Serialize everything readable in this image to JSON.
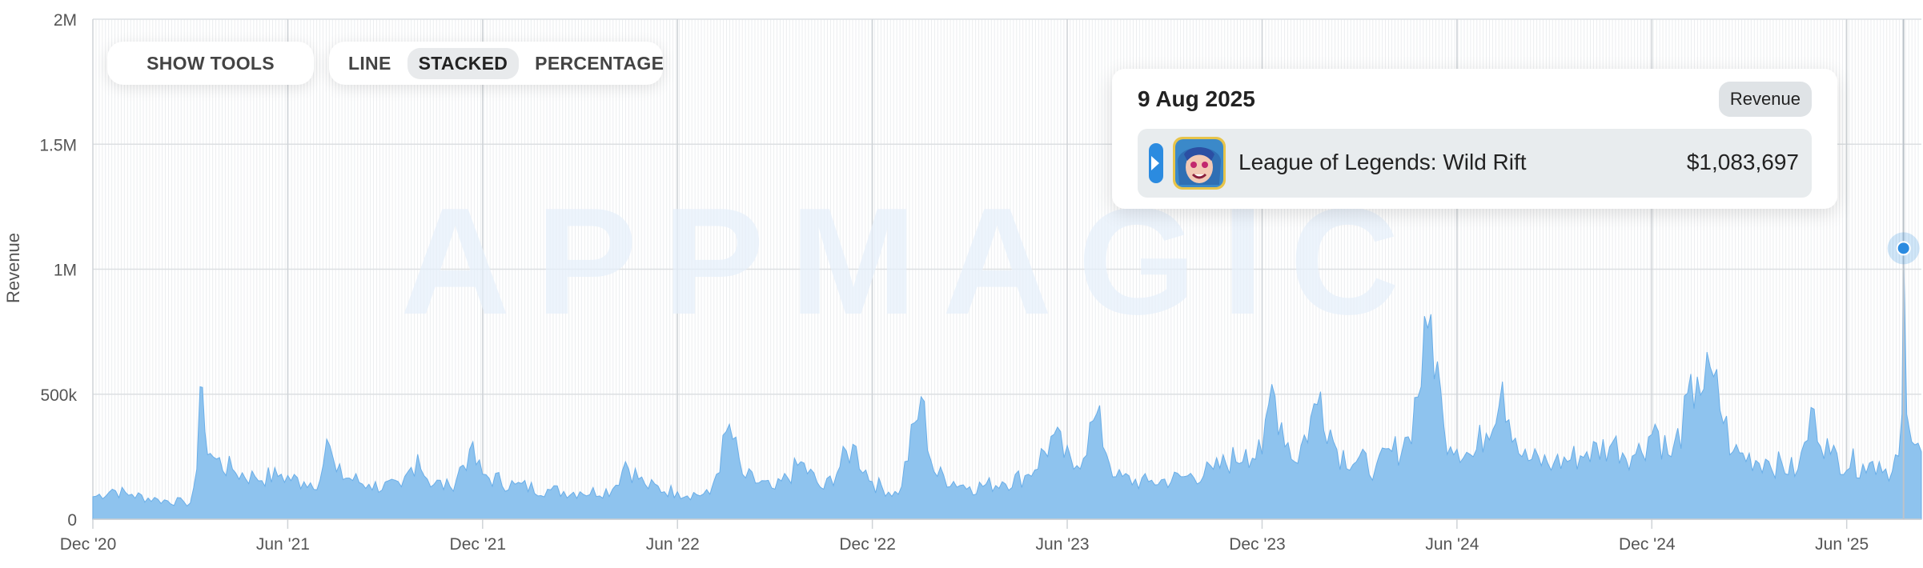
{
  "controls": {
    "show_tools": "SHOW TOOLS",
    "modes": [
      {
        "label": "LINE",
        "active": false
      },
      {
        "label": "STACKED",
        "active": true
      },
      {
        "label": "PERCENTAGE",
        "active": false
      }
    ]
  },
  "watermark": "APPMAGIC",
  "tooltip": {
    "date": "9 Aug 2025",
    "metric": "Revenue",
    "app_name": "League of Legends: Wild Rift",
    "value": "$1,083,697",
    "series_color": "#2b8be0"
  },
  "chart_data": {
    "type": "area",
    "title": "",
    "xlabel": "",
    "ylabel": "Revenue",
    "ylim": [
      0,
      2000000
    ],
    "y_ticks": [
      {
        "value": 0,
        "label": "0"
      },
      {
        "value": 500000,
        "label": "500k"
      },
      {
        "value": 1000000,
        "label": "1M"
      },
      {
        "value": 1500000,
        "label": "1.5M"
      },
      {
        "value": 2000000,
        "label": "2M"
      }
    ],
    "x_range_months": [
      0,
      56.3
    ],
    "x_ticks": [
      {
        "month": 0,
        "label": "Dec '20"
      },
      {
        "month": 6,
        "label": "Jun '21"
      },
      {
        "month": 12,
        "label": "Dec '21"
      },
      {
        "month": 18,
        "label": "Jun '22"
      },
      {
        "month": 24,
        "label": "Dec '22"
      },
      {
        "month": 30,
        "label": "Jun '23"
      },
      {
        "month": 36,
        "label": "Dec '23"
      },
      {
        "month": 42,
        "label": "Jun '24"
      },
      {
        "month": 48,
        "label": "Dec '24"
      },
      {
        "month": 54,
        "label": "Jun '25"
      }
    ],
    "fill_color": "#8ec3ee",
    "line_color": "#6aaee8",
    "highlight": {
      "month": 55.75,
      "value": 1083697,
      "label": "9 Aug 2025"
    },
    "series": [
      {
        "name": "League of Legends: Wild Rift",
        "points": [
          [
            0,
            90000
          ],
          [
            0.6,
            120000
          ],
          [
            1.2,
            100000
          ],
          [
            2.0,
            80000
          ],
          [
            2.8,
            70000
          ],
          [
            3.0,
            65000
          ],
          [
            3.2,
            200000
          ],
          [
            3.3,
            530000
          ],
          [
            3.45,
            350000
          ],
          [
            3.7,
            250000
          ],
          [
            4.3,
            200000
          ],
          [
            5.0,
            170000
          ],
          [
            5.8,
            180000
          ],
          [
            6.5,
            150000
          ],
          [
            7.0,
            160000
          ],
          [
            7.2,
            320000
          ],
          [
            7.5,
            190000
          ],
          [
            8.5,
            140000
          ],
          [
            9.5,
            130000
          ],
          [
            10.0,
            260000
          ],
          [
            10.3,
            160000
          ],
          [
            11.0,
            130000
          ],
          [
            11.6,
            280000
          ],
          [
            12.0,
            180000
          ],
          [
            13.0,
            140000
          ],
          [
            14.0,
            120000
          ],
          [
            15.0,
            110000
          ],
          [
            16.0,
            120000
          ],
          [
            16.4,
            230000
          ],
          [
            17.0,
            140000
          ],
          [
            18.0,
            110000
          ],
          [
            19.0,
            100000
          ],
          [
            19.6,
            380000
          ],
          [
            20.0,
            180000
          ],
          [
            21.0,
            120000
          ],
          [
            21.8,
            230000
          ],
          [
            22.5,
            120000
          ],
          [
            23.4,
            300000
          ],
          [
            24.0,
            150000
          ],
          [
            24.8,
            100000
          ],
          [
            25.5,
            490000
          ],
          [
            25.9,
            190000
          ],
          [
            27.0,
            130000
          ],
          [
            28.0,
            150000
          ],
          [
            28.8,
            180000
          ],
          [
            29.6,
            340000
          ],
          [
            30.2,
            200000
          ],
          [
            30.9,
            420000
          ],
          [
            31.5,
            170000
          ],
          [
            32.5,
            150000
          ],
          [
            33.5,
            170000
          ],
          [
            34.5,
            200000
          ],
          [
            35.5,
            280000
          ],
          [
            36.0,
            260000
          ],
          [
            36.3,
            540000
          ],
          [
            37.0,
            230000
          ],
          [
            37.8,
            510000
          ],
          [
            38.3,
            280000
          ],
          [
            39.5,
            210000
          ],
          [
            40.5,
            330000
          ],
          [
            41.2,
            820000
          ],
          [
            41.6,
            370000
          ],
          [
            42.5,
            250000
          ],
          [
            43.4,
            550000
          ],
          [
            44.0,
            250000
          ],
          [
            45.0,
            230000
          ],
          [
            46.0,
            270000
          ],
          [
            46.8,
            310000
          ],
          [
            47.5,
            260000
          ],
          [
            48.1,
            380000
          ],
          [
            48.6,
            250000
          ],
          [
            49.4,
            570000
          ],
          [
            49.9,
            570000
          ],
          [
            50.5,
            270000
          ],
          [
            51.5,
            240000
          ],
          [
            52.5,
            200000
          ],
          [
            53.0,
            440000
          ],
          [
            53.5,
            260000
          ],
          [
            54.5,
            220000
          ],
          [
            55.0,
            230000
          ],
          [
            55.4,
            190000
          ],
          [
            55.7,
            420000
          ],
          [
            55.75,
            1083697
          ],
          [
            55.85,
            420000
          ],
          [
            56.0,
            310000
          ],
          [
            56.3,
            270000
          ]
        ]
      }
    ]
  }
}
